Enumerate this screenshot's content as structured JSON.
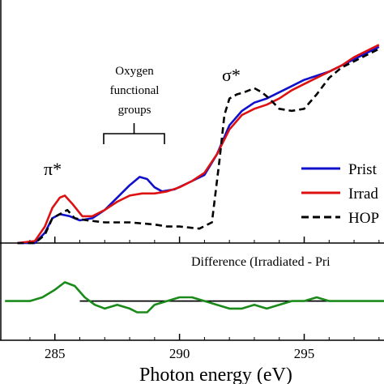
{
  "chart_data": {
    "type": "line",
    "xlabel": "Photon energy (eV)",
    "xlim": [
      282.8,
      298.2
    ],
    "x_ticks": [
      285,
      290,
      295
    ],
    "x_tick_labels": [
      "285",
      "290",
      "295"
    ],
    "top_panel": {
      "ylim": [
        0,
        1.02
      ],
      "series": [
        {
          "name": "Prist",
          "color": "#1010cc",
          "style": "solid",
          "points": [
            [
              283.5,
              0.0
            ],
            [
              284.2,
              0.0
            ],
            [
              284.6,
              0.05
            ],
            [
              284.9,
              0.12
            ],
            [
              285.2,
              0.14
            ],
            [
              285.6,
              0.13
            ],
            [
              286.0,
              0.11
            ],
            [
              286.5,
              0.12
            ],
            [
              287.0,
              0.16
            ],
            [
              287.5,
              0.22
            ],
            [
              288.0,
              0.28
            ],
            [
              288.4,
              0.32
            ],
            [
              288.7,
              0.31
            ],
            [
              289.0,
              0.27
            ],
            [
              289.3,
              0.25
            ],
            [
              289.8,
              0.26
            ],
            [
              290.5,
              0.3
            ],
            [
              291.0,
              0.33
            ],
            [
              291.5,
              0.43
            ],
            [
              292.0,
              0.57
            ],
            [
              292.5,
              0.64
            ],
            [
              293.0,
              0.68
            ],
            [
              293.5,
              0.7
            ],
            [
              294.0,
              0.73
            ],
            [
              294.5,
              0.76
            ],
            [
              295.0,
              0.79
            ],
            [
              295.5,
              0.81
            ],
            [
              296.0,
              0.83
            ],
            [
              296.5,
              0.86
            ],
            [
              297.0,
              0.89
            ],
            [
              297.5,
              0.92
            ],
            [
              298.0,
              0.95
            ]
          ]
        },
        {
          "name": "Irrad",
          "color": "#dd1111",
          "style": "solid",
          "points": [
            [
              283.5,
              0.0
            ],
            [
              284.2,
              0.01
            ],
            [
              284.6,
              0.08
            ],
            [
              284.9,
              0.17
            ],
            [
              285.2,
              0.22
            ],
            [
              285.4,
              0.23
            ],
            [
              285.7,
              0.19
            ],
            [
              286.1,
              0.13
            ],
            [
              286.5,
              0.13
            ],
            [
              287.0,
              0.16
            ],
            [
              287.5,
              0.2
            ],
            [
              288.0,
              0.23
            ],
            [
              288.5,
              0.24
            ],
            [
              289.0,
              0.24
            ],
            [
              289.5,
              0.25
            ],
            [
              290.0,
              0.27
            ],
            [
              290.5,
              0.3
            ],
            [
              291.0,
              0.34
            ],
            [
              291.5,
              0.43
            ],
            [
              292.0,
              0.55
            ],
            [
              292.5,
              0.62
            ],
            [
              293.0,
              0.65
            ],
            [
              293.5,
              0.67
            ],
            [
              294.0,
              0.7
            ],
            [
              294.5,
              0.74
            ],
            [
              295.0,
              0.77
            ],
            [
              295.5,
              0.8
            ],
            [
              296.0,
              0.83
            ],
            [
              296.5,
              0.86
            ],
            [
              297.0,
              0.9
            ],
            [
              297.5,
              0.93
            ],
            [
              298.0,
              0.96
            ]
          ]
        },
        {
          "name": "HOP",
          "color": "#000000",
          "style": "dashed",
          "points": [
            [
              283.5,
              0.0
            ],
            [
              284.2,
              0.0
            ],
            [
              284.6,
              0.04
            ],
            [
              284.9,
              0.12
            ],
            [
              285.2,
              0.14
            ],
            [
              285.5,
              0.16
            ],
            [
              285.8,
              0.12
            ],
            [
              286.3,
              0.11
            ],
            [
              287.0,
              0.1
            ],
            [
              288.0,
              0.1
            ],
            [
              289.0,
              0.09
            ],
            [
              289.5,
              0.08
            ],
            [
              290.0,
              0.08
            ],
            [
              290.8,
              0.07
            ],
            [
              291.3,
              0.1
            ],
            [
              291.6,
              0.4
            ],
            [
              291.8,
              0.62
            ],
            [
              292.0,
              0.7
            ],
            [
              292.3,
              0.72
            ],
            [
              292.6,
              0.73
            ],
            [
              293.0,
              0.75
            ],
            [
              293.3,
              0.73
            ],
            [
              293.6,
              0.7
            ],
            [
              294.0,
              0.65
            ],
            [
              294.5,
              0.64
            ],
            [
              295.0,
              0.65
            ],
            [
              295.5,
              0.72
            ],
            [
              296.0,
              0.8
            ],
            [
              296.5,
              0.85
            ],
            [
              297.0,
              0.88
            ],
            [
              297.5,
              0.91
            ],
            [
              298.0,
              0.94
            ]
          ]
        }
      ]
    },
    "bottom_panel": {
      "ylim": [
        -0.1,
        0.15
      ],
      "title": "Difference (Irradiated - Pri",
      "baseline": 0,
      "series": [
        {
          "name": "",
          "color": "#1a8a1a",
          "style": "solid",
          "points": [
            [
              283.0,
              0.0
            ],
            [
              284.0,
              0.0
            ],
            [
              284.5,
              0.01
            ],
            [
              285.0,
              0.03
            ],
            [
              285.4,
              0.05
            ],
            [
              285.8,
              0.04
            ],
            [
              286.2,
              0.01
            ],
            [
              286.6,
              -0.01
            ],
            [
              287.0,
              -0.02
            ],
            [
              287.5,
              -0.01
            ],
            [
              288.0,
              -0.02
            ],
            [
              288.3,
              -0.03
            ],
            [
              288.7,
              -0.03
            ],
            [
              289.0,
              -0.01
            ],
            [
              289.5,
              0.0
            ],
            [
              290.0,
              0.01
            ],
            [
              290.5,
              0.01
            ],
            [
              291.0,
              0.0
            ],
            [
              291.5,
              -0.01
            ],
            [
              292.0,
              -0.02
            ],
            [
              292.5,
              -0.02
            ],
            [
              293.0,
              -0.01
            ],
            [
              293.5,
              -0.02
            ],
            [
              294.0,
              -0.01
            ],
            [
              294.5,
              0.0
            ],
            [
              295.0,
              0.0
            ],
            [
              295.5,
              0.01
            ],
            [
              296.0,
              0.0
            ],
            [
              297.0,
              0.0
            ],
            [
              298.2,
              0.0
            ]
          ]
        }
      ]
    },
    "annotations": {
      "pi_star": "π*",
      "sigma_star": "σ*",
      "oxygen_line1": "Oxygen",
      "oxygen_line2": "functional",
      "oxygen_line3": "groups"
    },
    "legend": [
      "Prist",
      "Irrad",
      "HOP"
    ]
  }
}
